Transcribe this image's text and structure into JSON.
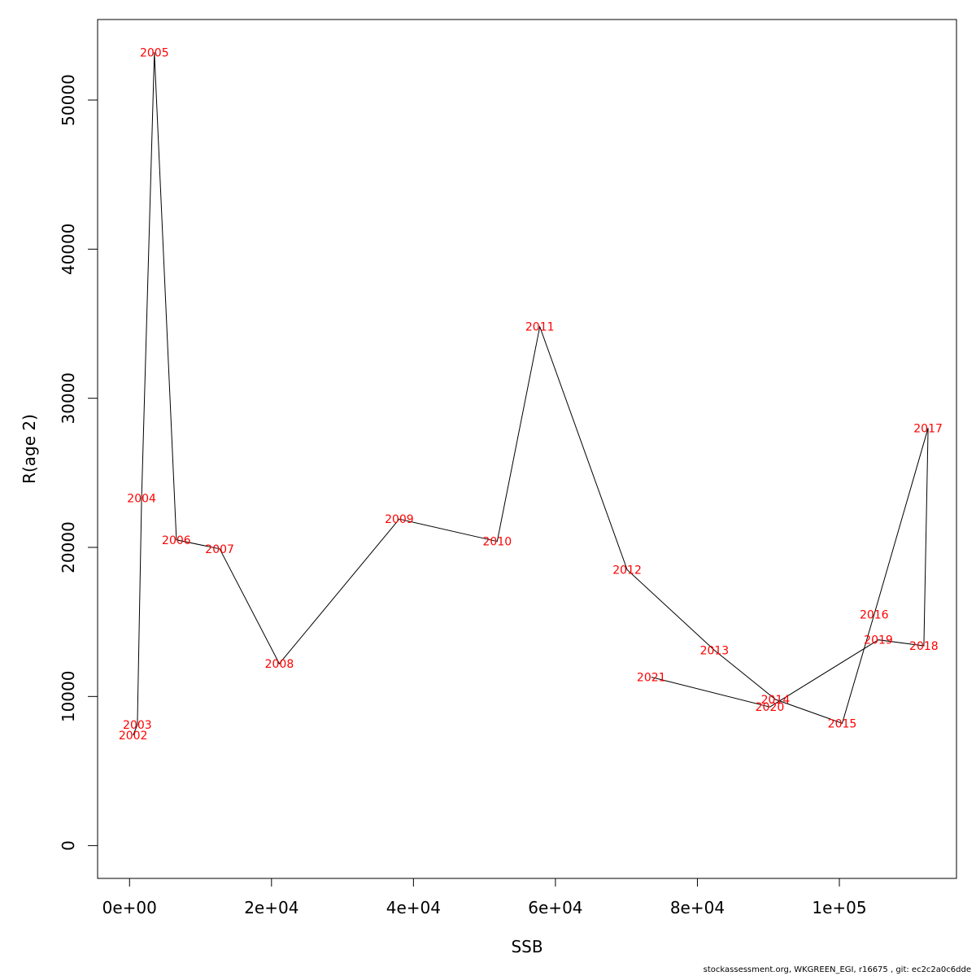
{
  "chart_data": {
    "type": "line",
    "xlabel": "SSB",
    "ylabel": "R(age 2)",
    "xlim": [
      -4500,
      116500
    ],
    "ylim": [
      -2200,
      55400
    ],
    "x_ticks": [
      0,
      20000,
      40000,
      60000,
      80000,
      100000
    ],
    "x_tick_labels": [
      "0e+00",
      "2e+04",
      "4e+04",
      "6e+04",
      "8e+04",
      "1e+05"
    ],
    "y_ticks": [
      0,
      10000,
      20000,
      30000,
      40000,
      50000
    ],
    "y_tick_labels": [
      "0",
      "10000",
      "20000",
      "30000",
      "40000",
      "50000"
    ],
    "grid": false,
    "legend": "none",
    "line_color": "#000000",
    "label_color": "#ff0000",
    "points": [
      {
        "label": "2002",
        "x": 500,
        "y": 7400
      },
      {
        "label": "2003",
        "x": 1100,
        "y": 8100
      },
      {
        "label": "2004",
        "x": 1700,
        "y": 23300
      },
      {
        "label": "2005",
        "x": 3500,
        "y": 53200
      },
      {
        "label": "2006",
        "x": 6600,
        "y": 20500
      },
      {
        "label": "2007",
        "x": 12700,
        "y": 19900
      },
      {
        "label": "2008",
        "x": 21100,
        "y": 12200
      },
      {
        "label": "2009",
        "x": 38000,
        "y": 21900
      },
      {
        "label": "2010",
        "x": 51800,
        "y": 20400
      },
      {
        "label": "2011",
        "x": 57800,
        "y": 34800
      },
      {
        "label": "2012",
        "x": 70100,
        "y": 18500
      },
      {
        "label": "2013",
        "x": 82400,
        "y": 13100
      },
      {
        "label": "2014",
        "x": 91000,
        "y": 9800
      },
      {
        "label": "2015",
        "x": 100400,
        "y": 8200
      },
      {
        "label": "2016",
        "x": 104900,
        "y": 15500
      },
      {
        "label": "2017",
        "x": 112500,
        "y": 28000
      },
      {
        "label": "2018",
        "x": 111900,
        "y": 13400
      },
      {
        "label": "2019",
        "x": 105500,
        "y": 13800
      },
      {
        "label": "2020",
        "x": 90200,
        "y": 9300
      },
      {
        "label": "2021",
        "x": 73500,
        "y": 11300
      }
    ]
  },
  "footer": "stockassessment.org, WKGREEN_EGI, r16675 , git: ec2c2a0c6dde"
}
